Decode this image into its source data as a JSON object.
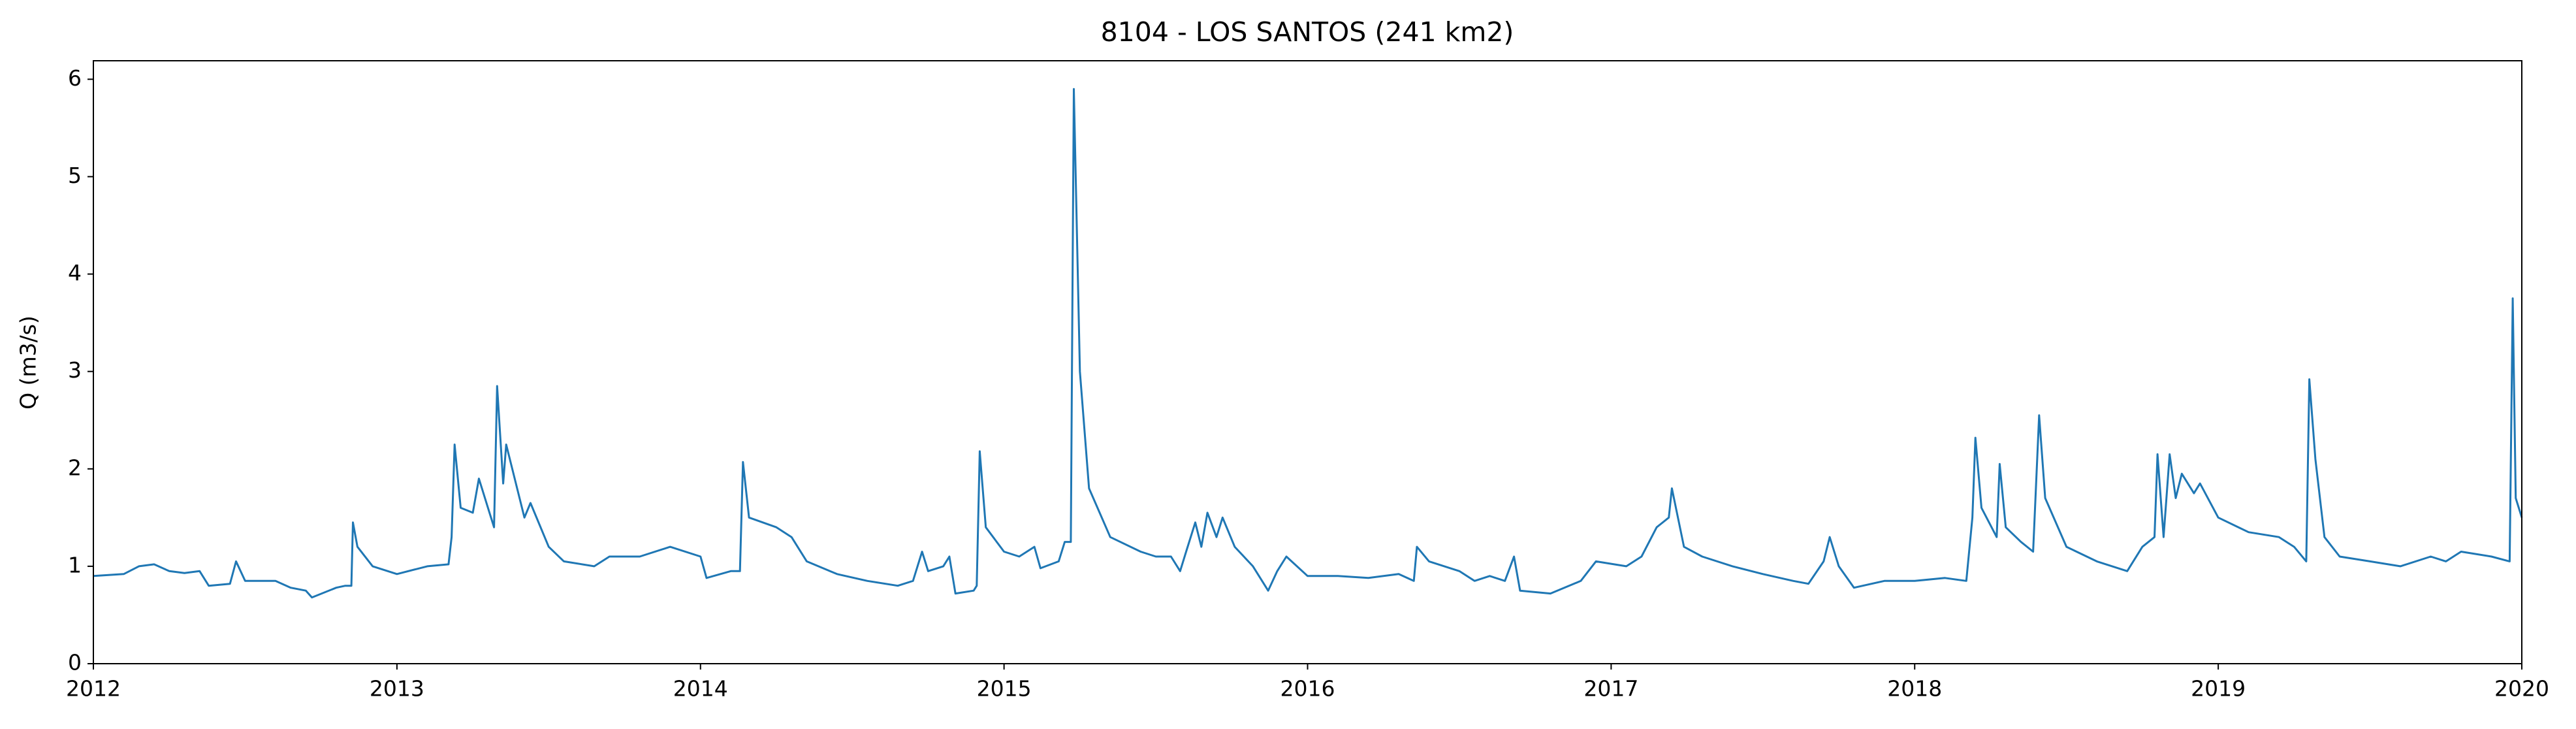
{
  "chart_data": {
    "type": "line",
    "title": "8104 - LOS SANTOS (241 km2)",
    "y_label": "Q (m3/s)",
    "xlim": [
      2012,
      2020
    ],
    "xticks": [
      2012,
      2013,
      2014,
      2015,
      2016,
      2017,
      2018,
      2019,
      2020
    ],
    "ylim": [
      0,
      6.19
    ],
    "yticks": [
      0,
      1,
      2,
      3,
      4,
      5,
      6
    ],
    "grid": false,
    "series": [
      {
        "name": "Q",
        "color": "#1f77b4",
        "x": [
          2012.0,
          2012.1,
          2012.15,
          2012.2,
          2012.25,
          2012.3,
          2012.35,
          2012.38,
          2012.45,
          2012.47,
          2012.5,
          2012.6,
          2012.65,
          2012.7,
          2012.72,
          2012.8,
          2012.83,
          2012.85,
          2012.855,
          2012.87,
          2012.92,
          2013.0,
          2013.1,
          2013.17,
          2013.18,
          2013.19,
          2013.21,
          2013.25,
          2013.27,
          2013.3,
          2013.32,
          2013.33,
          2013.35,
          2013.36,
          2013.38,
          2013.42,
          2013.44,
          2013.5,
          2013.55,
          2013.65,
          2013.7,
          2013.8,
          2013.9,
          2014.0,
          2014.02,
          2014.1,
          2014.13,
          2014.14,
          2014.16,
          2014.25,
          2014.3,
          2014.35,
          2014.45,
          2014.55,
          2014.65,
          2014.7,
          2014.73,
          2014.75,
          2014.8,
          2014.82,
          2014.84,
          2014.9,
          2014.91,
          2014.92,
          2014.94,
          2015.0,
          2015.05,
          2015.1,
          2015.12,
          2015.18,
          2015.2,
          2015.22,
          2015.23,
          2015.25,
          2015.28,
          2015.35,
          2015.45,
          2015.5,
          2015.55,
          2015.58,
          2015.6,
          2015.63,
          2015.65,
          2015.67,
          2015.7,
          2015.72,
          2015.76,
          2015.82,
          2015.87,
          2015.9,
          2015.93,
          2016.0,
          2016.1,
          2016.2,
          2016.3,
          2016.35,
          2016.36,
          2016.4,
          2016.5,
          2016.55,
          2016.6,
          2016.65,
          2016.68,
          2016.7,
          2016.8,
          2016.9,
          2016.95,
          2017.05,
          2017.1,
          2017.15,
          2017.19,
          2017.2,
          2017.24,
          2017.3,
          2017.4,
          2017.5,
          2017.6,
          2017.65,
          2017.7,
          2017.72,
          2017.75,
          2017.8,
          2017.9,
          2018.0,
          2018.1,
          2018.17,
          2018.19,
          2018.2,
          2018.22,
          2018.27,
          2018.28,
          2018.3,
          2018.35,
          2018.39,
          2018.41,
          2018.43,
          2018.5,
          2018.6,
          2018.7,
          2018.75,
          2018.79,
          2018.8,
          2018.82,
          2018.84,
          2018.86,
          2018.88,
          2018.92,
          2018.94,
          2019.0,
          2019.1,
          2019.2,
          2019.25,
          2019.29,
          2019.3,
          2019.32,
          2019.35,
          2019.4,
          2019.5,
          2019.6,
          2019.7,
          2019.75,
          2019.8,
          2019.9,
          2019.96,
          2019.97,
          2019.98,
          2020.0
        ],
        "values": [
          0.9,
          0.92,
          1.0,
          1.02,
          0.95,
          0.93,
          0.95,
          0.8,
          0.82,
          1.05,
          0.85,
          0.85,
          0.78,
          0.75,
          0.68,
          0.78,
          0.8,
          0.8,
          1.45,
          1.2,
          1.0,
          0.92,
          1.0,
          1.02,
          1.3,
          2.25,
          1.6,
          1.55,
          1.9,
          1.6,
          1.4,
          2.85,
          1.85,
          2.25,
          2.0,
          1.5,
          1.65,
          1.2,
          1.05,
          1.0,
          1.1,
          1.1,
          1.2,
          1.1,
          0.88,
          0.95,
          0.95,
          2.07,
          1.5,
          1.4,
          1.3,
          1.05,
          0.92,
          0.85,
          0.8,
          0.85,
          1.15,
          0.95,
          1.0,
          1.1,
          0.72,
          0.75,
          0.8,
          2.18,
          1.4,
          1.15,
          1.1,
          1.2,
          0.98,
          1.05,
          1.25,
          1.25,
          5.9,
          3.0,
          1.8,
          1.3,
          1.15,
          1.1,
          1.1,
          0.95,
          1.15,
          1.45,
          1.2,
          1.55,
          1.3,
          1.5,
          1.2,
          1.0,
          0.75,
          0.95,
          1.1,
          0.9,
          0.9,
          0.88,
          0.92,
          0.85,
          1.2,
          1.05,
          0.95,
          0.85,
          0.9,
          0.85,
          1.1,
          0.75,
          0.72,
          0.85,
          1.05,
          1.0,
          1.1,
          1.4,
          1.5,
          1.8,
          1.2,
          1.1,
          1.0,
          0.92,
          0.85,
          0.82,
          1.05,
          1.3,
          1.0,
          0.78,
          0.85,
          0.85,
          0.88,
          0.85,
          1.5,
          2.32,
          1.6,
          1.3,
          2.05,
          1.4,
          1.25,
          1.15,
          2.55,
          1.7,
          1.2,
          1.05,
          0.95,
          1.2,
          1.3,
          2.15,
          1.3,
          2.15,
          1.7,
          1.95,
          1.75,
          1.85,
          1.5,
          1.35,
          1.3,
          1.2,
          1.05,
          2.92,
          2.1,
          1.3,
          1.1,
          1.05,
          1.0,
          1.1,
          1.05,
          1.15,
          1.1,
          1.05,
          3.75,
          1.7,
          1.5
        ]
      }
    ]
  }
}
